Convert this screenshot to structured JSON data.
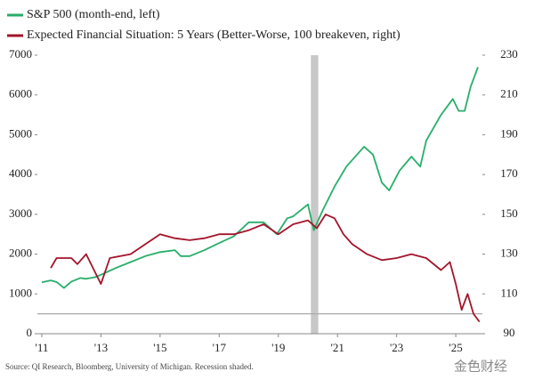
{
  "chart_data": {
    "type": "line",
    "series": [
      {
        "name": "S&P 500 (month-end, left)",
        "color": "#27ae6a",
        "axis": "y",
        "x": [
          2011,
          2011.3,
          2011.5,
          2011.75,
          2012,
          2012.3,
          2012.5,
          2012.8,
          2013,
          2013.5,
          2014,
          2014.5,
          2015,
          2015.5,
          2015.7,
          2016,
          2016.5,
          2017,
          2017.5,
          2018,
          2018.5,
          2018.95,
          2019.3,
          2019.5,
          2020,
          2020.2,
          2020.5,
          2020.9,
          2021.3,
          2021.9,
          2022.2,
          2022.5,
          2022.75,
          2023.1,
          2023.5,
          2023.8,
          2024,
          2024.5,
          2024.9,
          2025.1,
          2025.3,
          2025.5,
          2025.75
        ],
        "values": [
          1290,
          1340,
          1300,
          1150,
          1310,
          1400,
          1380,
          1420,
          1480,
          1650,
          1800,
          1950,
          2050,
          2100,
          1950,
          1950,
          2100,
          2280,
          2450,
          2800,
          2800,
          2500,
          2900,
          2950,
          3250,
          2600,
          3100,
          3700,
          4200,
          4700,
          4500,
          3800,
          3600,
          4100,
          4450,
          4200,
          4850,
          5500,
          5900,
          5600,
          5600,
          6200,
          6700
        ]
      },
      {
        "name": "Expected Financial Situation: 5 Years (Better-Worse, 100 breakeven, right)",
        "color": "#a3142a",
        "axis": "y2",
        "x": [
          2011.3,
          2011.5,
          2012,
          2012.2,
          2012.5,
          2013,
          2013.3,
          2014,
          2014.5,
          2015,
          2015.5,
          2016,
          2016.5,
          2017,
          2017.5,
          2018,
          2018.5,
          2019,
          2019.5,
          2020,
          2020.3,
          2020.6,
          2020.9,
          2021.2,
          2021.5,
          2022,
          2022.5,
          2023,
          2023.5,
          2024,
          2024.5,
          2024.8,
          2025,
          2025.2,
          2025.4,
          2025.6,
          2025.8
        ],
        "values": [
          123,
          128,
          128,
          125,
          130,
          115,
          128,
          130,
          135,
          140,
          138,
          137,
          138,
          140,
          140,
          142,
          145,
          140,
          145,
          147,
          143,
          150,
          148,
          140,
          135,
          130,
          127,
          128,
          130,
          128,
          122,
          126,
          115,
          102,
          110,
          100,
          96
        ]
      }
    ],
    "xlim": [
      2010.85,
      2025.9
    ],
    "xticks": [
      {
        "value": 2011,
        "label": "'11"
      },
      {
        "value": 2013,
        "label": "'13"
      },
      {
        "value": 2015,
        "label": "'15"
      },
      {
        "value": 2017,
        "label": "'17"
      },
      {
        "value": 2019,
        "label": "'19"
      },
      {
        "value": 2021,
        "label": "'21"
      },
      {
        "value": 2023,
        "label": "'23"
      },
      {
        "value": 2025,
        "label": "'25"
      }
    ],
    "ylim": [
      0,
      7000
    ],
    "yticks": [
      0,
      1000,
      2000,
      3000,
      4000,
      5000,
      6000,
      7000
    ],
    "y2lim": [
      90,
      230
    ],
    "y2ticks": [
      90,
      110,
      130,
      150,
      170,
      190,
      210,
      230
    ],
    "recession": [
      2020.1,
      2020.35
    ],
    "breakeven": 100,
    "source": "Source: QI Research, Bloomberg, University of Michigan. Recession shaded.",
    "watermark": "金色财经"
  }
}
